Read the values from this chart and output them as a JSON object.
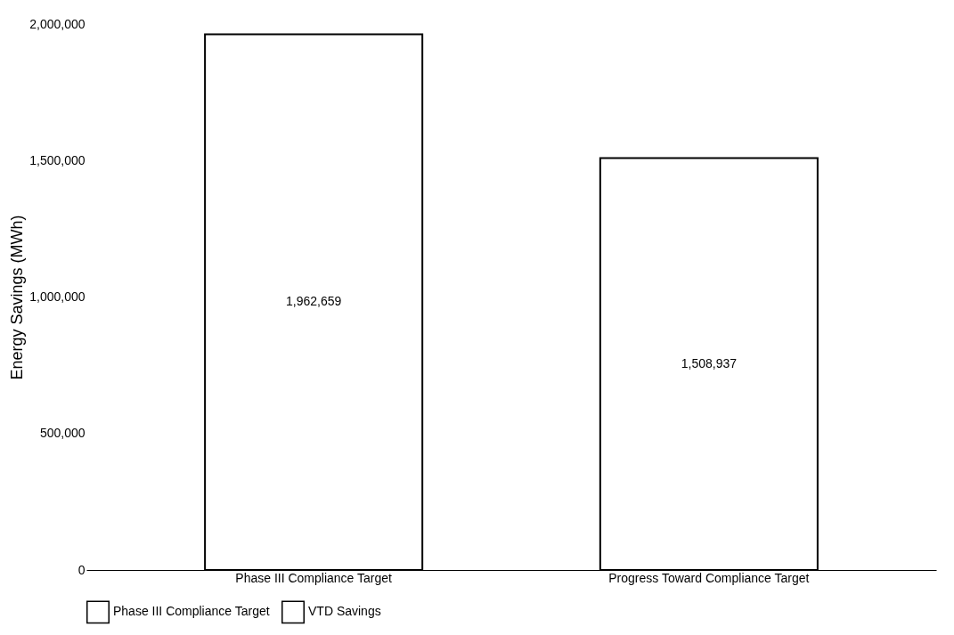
{
  "chart_data": {
    "type": "bar",
    "ylabel": "Energy Savings (MWh)",
    "categories": [
      "Phase III Compliance Target",
      "Progress Toward Compliance Target"
    ],
    "series": [
      {
        "name": "Phase III Compliance Target",
        "color": "#ffffff",
        "values": [
          1962659,
          null
        ],
        "value_labels": [
          "1,962,659",
          null
        ]
      },
      {
        "name": "VTD Savings",
        "color": "#ffffff",
        "values": [
          null,
          1508937
        ],
        "value_labels": [
          null,
          "1,508,937"
        ]
      }
    ],
    "ylim": [
      0,
      2000000
    ],
    "yticks": [
      0,
      {
        "value": 500000,
        "label": "500,000"
      },
      {
        "value": 1000000,
        "label": "1,000,000"
      },
      {
        "value": 1500000,
        "label": "1,500,000"
      },
      {
        "value": 2000000,
        "label": "2,000,000"
      }
    ],
    "grid": false,
    "legend": "bottom"
  }
}
